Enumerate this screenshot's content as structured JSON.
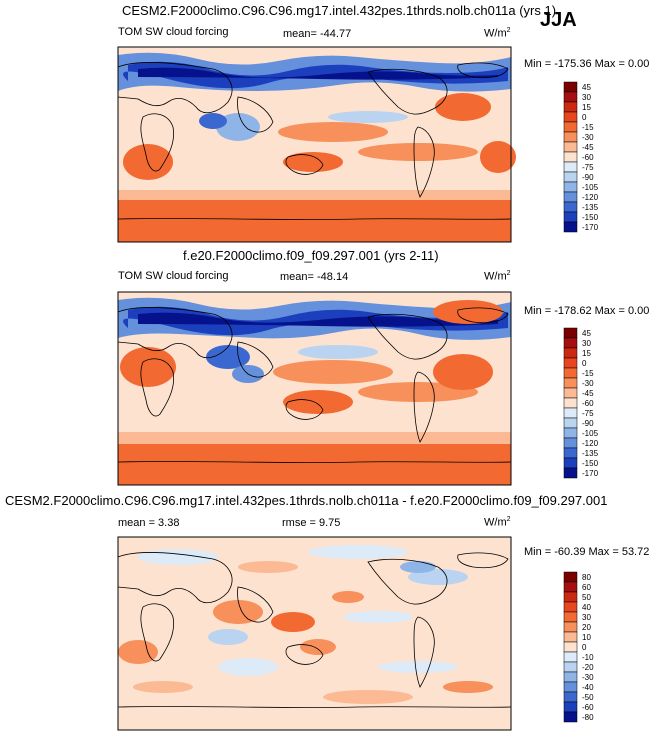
{
  "season": "JJA",
  "panels": [
    {
      "title": "CESM2.F2000climo.C96.C96.mg17.intel.432pes.1thrds.nolb.ch011a (yrs 1)",
      "variable": "TOM SW cloud forcing",
      "stat": "mean= -44.77",
      "unit_base": "W/m",
      "unit_exp": "2",
      "minmax": "Min = -175.36 Max =   0.00"
    },
    {
      "title": "f.e20.F2000climo.f09_f09.297.001 (yrs 2-11)",
      "variable": "TOM SW cloud forcing",
      "stat": "mean= -48.14",
      "unit_base": "W/m",
      "unit_exp": "2",
      "minmax": "Min = -178.62 Max =   0.00"
    },
    {
      "title": "CESM2.F2000climo.C96.C96.mg17.intel.432pes.1thrds.nolb.ch011a - f.e20.F2000climo.f09_f09.297.001",
      "stat": "mean =  3.38",
      "stat2": "rmse =  9.75",
      "unit_base": "W/m",
      "unit_exp": "2",
      "minmax": "Min = -60.39 Max = 53.72"
    }
  ],
  "chart_data": [
    {
      "type": "heatmap",
      "title": "CESM2.F2000climo.C96.C96.mg17.intel.432pes.1thrds.nolb.ch011a (yrs 1)",
      "variable": "TOM SW cloud forcing",
      "mean": -44.77,
      "min": -175.36,
      "max": 0.0,
      "colorbar_levels": [
        "45",
        "30",
        "15",
        "0",
        "-15",
        "-30",
        "-45",
        "-60",
        "-75",
        "-90",
        "-105",
        "-120",
        "-135",
        "-150",
        "-170"
      ],
      "colorbar_colors": [
        "#7a0000",
        "#a50f0f",
        "#cc2a10",
        "#e8461e",
        "#f26a32",
        "#f7905a",
        "#fbb994",
        "#fde2cf",
        "#ddeaf7",
        "#b9d3f0",
        "#8fb4e8",
        "#6490dc",
        "#3b68d0",
        "#1c3fbd",
        "#06128c"
      ]
    },
    {
      "type": "heatmap",
      "title": "f.e20.F2000climo.f09_f09.297.001 (yrs 2-11)",
      "variable": "TOM SW cloud forcing",
      "mean": -48.14,
      "min": -178.62,
      "max": 0.0,
      "colorbar_levels": [
        "45",
        "30",
        "15",
        "0",
        "-15",
        "-30",
        "-45",
        "-60",
        "-75",
        "-90",
        "-105",
        "-120",
        "-135",
        "-150",
        "-170"
      ],
      "colorbar_colors": [
        "#7a0000",
        "#a50f0f",
        "#cc2a10",
        "#e8461e",
        "#f26a32",
        "#f7905a",
        "#fbb994",
        "#fde2cf",
        "#ddeaf7",
        "#b9d3f0",
        "#8fb4e8",
        "#6490dc",
        "#3b68d0",
        "#1c3fbd",
        "#06128c"
      ]
    },
    {
      "type": "heatmap",
      "title": "CESM2.F2000climo.C96.C96.mg17.intel.432pes.1thrds.nolb.ch011a - f.e20.F2000climo.f09_f09.297.001",
      "mean": 3.38,
      "rmse": 9.75,
      "min": -60.39,
      "max": 53.72,
      "colorbar_levels": [
        "80",
        "60",
        "50",
        "40",
        "30",
        "20",
        "10",
        "0",
        "-10",
        "-20",
        "-30",
        "-40",
        "-50",
        "-60",
        "-80"
      ],
      "colorbar_colors": [
        "#7a0000",
        "#a50f0f",
        "#cc2a10",
        "#e8461e",
        "#f26a32",
        "#f7905a",
        "#fbb994",
        "#fde2cf",
        "#ddeaf7",
        "#b9d3f0",
        "#8fb4e8",
        "#6490dc",
        "#3b68d0",
        "#1c3fbd",
        "#06128c"
      ]
    }
  ]
}
